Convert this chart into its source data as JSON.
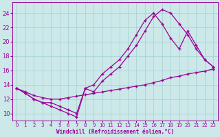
{
  "xlabel": "Windchill (Refroidissement éolien,°C)",
  "background_color": "#cce8e8",
  "grid_color": "#aad4d4",
  "line_color": "#990099",
  "xlim": [
    -0.5,
    23.5
  ],
  "ylim": [
    9,
    25.5
  ],
  "yticks": [
    10,
    12,
    14,
    16,
    18,
    20,
    22,
    24
  ],
  "xticks": [
    0,
    1,
    2,
    3,
    4,
    5,
    6,
    7,
    8,
    9,
    10,
    11,
    12,
    13,
    14,
    15,
    16,
    17,
    18,
    19,
    20,
    21,
    22,
    23
  ],
  "line1_x": [
    0,
    1,
    2,
    3,
    4,
    5,
    6,
    7,
    8,
    9,
    10,
    11,
    12,
    13,
    14,
    15,
    16,
    17,
    18,
    19,
    20,
    21,
    22,
    23
  ],
  "line1_y": [
    13.5,
    13.0,
    12.5,
    12.2,
    12.0,
    12.0,
    12.2,
    12.4,
    12.6,
    12.8,
    13.0,
    13.2,
    13.4,
    13.6,
    13.8,
    14.0,
    14.3,
    14.6,
    15.0,
    15.2,
    15.5,
    15.7,
    15.9,
    16.2
  ],
  "line2_x": [
    0,
    1,
    2,
    3,
    4,
    5,
    6,
    7,
    8,
    9,
    10,
    11,
    12,
    13,
    14,
    15,
    16,
    17,
    18,
    19,
    20,
    21,
    22,
    23
  ],
  "line2_y": [
    13.5,
    12.8,
    12.0,
    11.5,
    11.0,
    10.5,
    10.0,
    9.5,
    13.5,
    13.0,
    14.5,
    15.5,
    16.5,
    18.0,
    19.5,
    21.5,
    23.5,
    24.5,
    24.0,
    22.5,
    21.0,
    19.0,
    17.5,
    16.5
  ],
  "line3_x": [
    0,
    1,
    2,
    3,
    4,
    5,
    6,
    7,
    8,
    9,
    10,
    11,
    12,
    13,
    14,
    15,
    16,
    17,
    18,
    19,
    20,
    21,
    22,
    23
  ],
  "line3_y": [
    13.5,
    12.8,
    12.0,
    11.5,
    11.5,
    11.0,
    10.5,
    10.0,
    13.5,
    14.0,
    15.5,
    16.5,
    17.5,
    19.0,
    21.0,
    23.0,
    24.0,
    22.5,
    20.5,
    19.0,
    21.5,
    19.5,
    17.5,
    16.5
  ]
}
